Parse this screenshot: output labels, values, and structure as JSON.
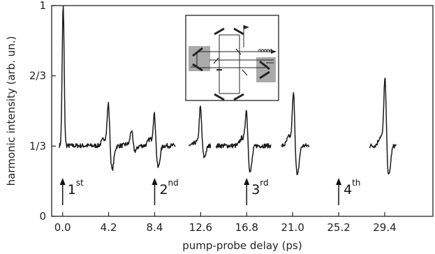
{
  "chart_data": {
    "type": "line",
    "xlabel": "pump-probe delay (ps)",
    "ylabel": "harmonic intensity (arb. un.)",
    "xlim": [
      -1.0,
      33.8
    ],
    "ylim": [
      0,
      1
    ],
    "x_ticks": [
      0.0,
      4.2,
      8.4,
      12.6,
      16.8,
      21.0,
      25.2,
      29.4
    ],
    "x_tick_labels": [
      "0.0",
      "4.2",
      "8.4",
      "12.6",
      "16.8",
      "21.0",
      "25.2",
      "29.4"
    ],
    "y_ticks": [
      0,
      0.3333,
      0.6667,
      1
    ],
    "y_tick_labels": [
      "0",
      "1/3",
      "2/3",
      "1"
    ],
    "grid": false,
    "baseline": 0.335,
    "segments": [
      {
        "x_range": [
          -0.3,
          10.3
        ],
        "peaks": [
          {
            "x": 0.05,
            "kind": "spike",
            "peak": 1.0,
            "dip": 0.33
          },
          {
            "x": 4.2,
            "kind": "osc",
            "peak": 0.54,
            "dip": 0.22
          },
          {
            "x": 6.3,
            "kind": "osc",
            "peak": 0.41,
            "dip": 0.31
          },
          {
            "x": 8.4,
            "kind": "osc",
            "peak": 0.49,
            "dip": 0.23
          }
        ]
      },
      {
        "x_range": [
          11.5,
          13.5
        ],
        "peaks": [
          {
            "x": 12.6,
            "kind": "osc",
            "peak": 0.52,
            "dip": 0.28
          }
        ]
      },
      {
        "x_range": [
          14.0,
          19.0
        ],
        "peaks": [
          {
            "x": 16.8,
            "kind": "osc",
            "peak": 0.51,
            "dip": 0.21
          }
        ]
      },
      {
        "x_range": [
          20.0,
          22.5
        ],
        "peaks": [
          {
            "x": 21.1,
            "kind": "osc",
            "peak": 0.59,
            "dip": 0.19
          }
        ]
      },
      {
        "x_range": [
          28.0,
          30.5
        ],
        "peaks": [
          {
            "x": 29.45,
            "kind": "osc",
            "peak": 0.66,
            "dip": 0.19
          }
        ]
      }
    ],
    "annotations": [
      {
        "text": "1",
        "sup": "st",
        "x": 0.0
      },
      {
        "text": "2",
        "sup": "nd",
        "x": 8.4
      },
      {
        "text": "3",
        "sup": "rd",
        "x": 16.8
      },
      {
        "text": "4",
        "sup": "th",
        "x": 25.2
      }
    ]
  }
}
